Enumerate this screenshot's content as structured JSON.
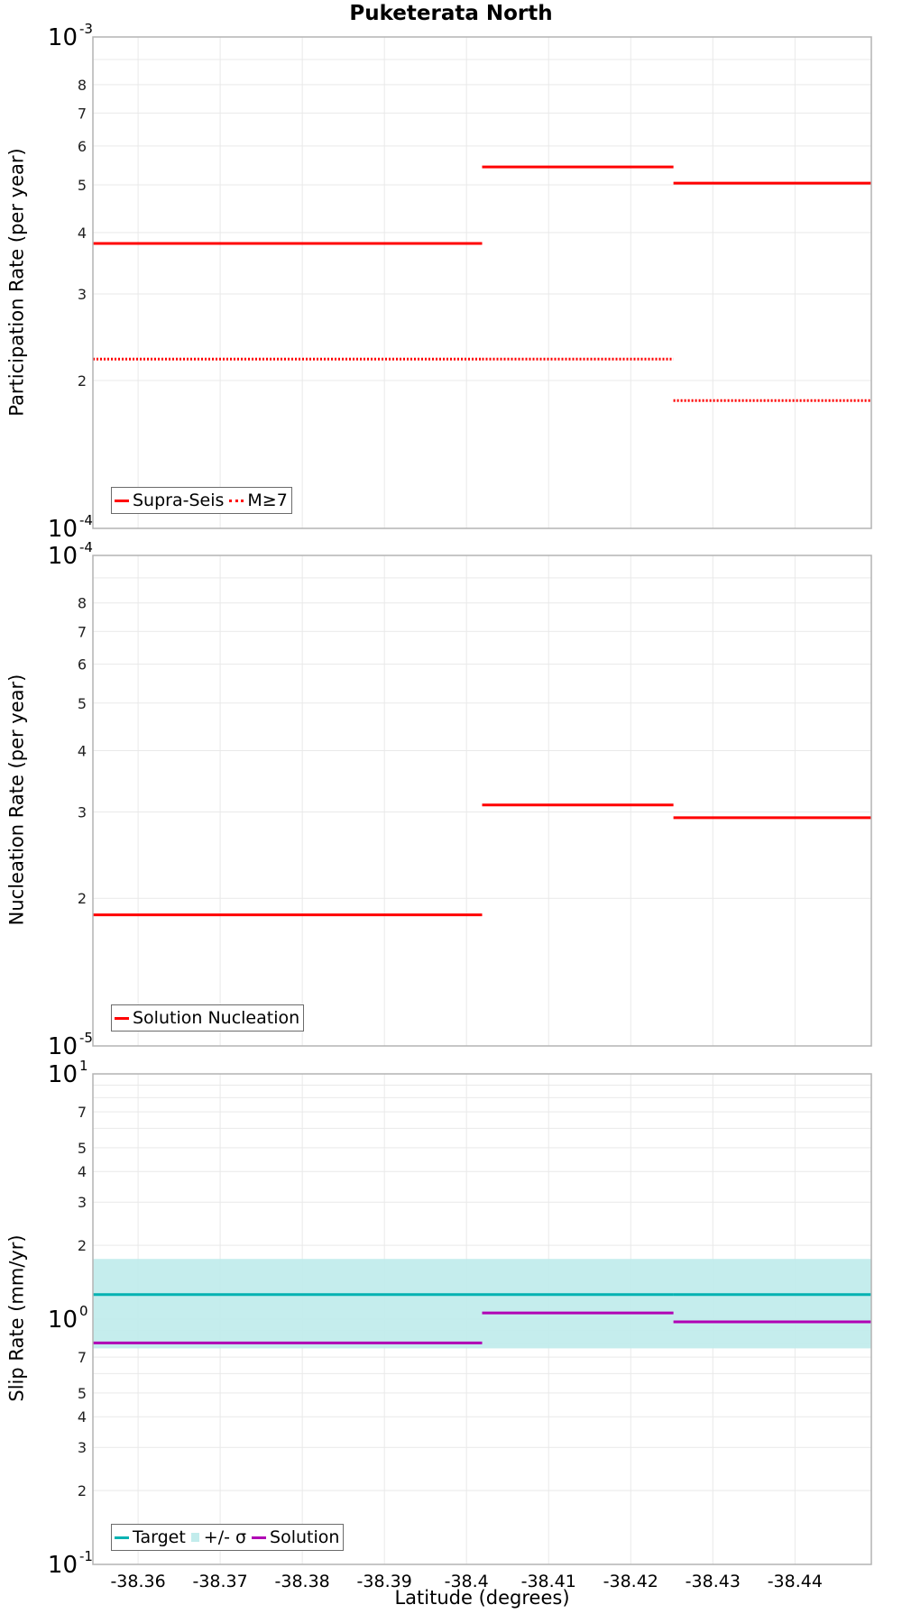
{
  "figure": {
    "title": "Puketerata North",
    "xlabel": "Latitude (degrees)"
  },
  "colors": {
    "supra_seis": "#ff0000",
    "m7": "#ff0000",
    "nucleation": "#ff0000",
    "target": "#00b2b2",
    "sigma_band": "#c2ecec",
    "solution": "#b000b4",
    "grid": "#e9e9e9",
    "frame": "#b4b4b4"
  },
  "chart_data": [
    {
      "type": "line",
      "title": "Puketerata North",
      "xlabel": "Latitude (degrees)",
      "ylabel": "Participation Rate (per year)",
      "yscale": "log",
      "ylim": [
        0.0001,
        0.001
      ],
      "xlim": [
        -38.3545,
        -38.4493
      ],
      "x_ticks": [
        -38.36,
        -38.37,
        -38.38,
        -38.39,
        -38.4,
        -38.41,
        -38.42,
        -38.43,
        -38.44
      ],
      "y_tick_labels": [
        "10^-3",
        "8",
        "7",
        "6",
        "5",
        "4",
        "3",
        "2",
        "10^-4"
      ],
      "grid": true,
      "legend": {
        "position": "lower-left",
        "entries": [
          "Supra-Seis",
          "M≥7"
        ]
      },
      "series": [
        {
          "name": "Supra-Seis",
          "style": "solid",
          "segments": [
            {
              "x": [
                -38.3545,
                -38.4019
              ],
              "y": 0.00038
            },
            {
              "x": [
                -38.4019,
                -38.4252
              ],
              "y": 0.000544
            },
            {
              "x": [
                -38.4252,
                -38.4493
              ],
              "y": 0.000504
            }
          ]
        },
        {
          "name": "M≥7",
          "style": "dotted",
          "segments": [
            {
              "x": [
                -38.3545,
                -38.4019
              ],
              "y": 0.000221
            },
            {
              "x": [
                -38.4019,
                -38.4252
              ],
              "y": 0.000221
            },
            {
              "x": [
                -38.4252,
                -38.4493
              ],
              "y": 0.000182
            }
          ]
        }
      ]
    },
    {
      "type": "line",
      "ylabel": "Nucleation Rate (per year)",
      "yscale": "log",
      "ylim": [
        1e-05,
        0.0001
      ],
      "xlim": [
        -38.3545,
        -38.4493
      ],
      "y_tick_labels": [
        "10^-4",
        "8",
        "7",
        "6",
        "5",
        "4",
        "3",
        "2",
        "10^-5"
      ],
      "grid": true,
      "legend": {
        "position": "lower-left",
        "entries": [
          "Solution Nucleation"
        ]
      },
      "series": [
        {
          "name": "Solution Nucleation",
          "style": "solid",
          "segments": [
            {
              "x": [
                -38.3545,
                -38.4019
              ],
              "y": 1.85e-05
            },
            {
              "x": [
                -38.4019,
                -38.4252
              ],
              "y": 3.1e-05
            },
            {
              "x": [
                -38.4252,
                -38.4493
              ],
              "y": 2.92e-05
            }
          ]
        }
      ]
    },
    {
      "type": "line",
      "ylabel": "Slip Rate (mm/yr)",
      "yscale": "log",
      "ylim": [
        0.1,
        10
      ],
      "xlim": [
        -38.3545,
        -38.4493
      ],
      "y_tick_labels": [
        "10^1",
        "7",
        "5",
        "4",
        "3",
        "2",
        "10^0",
        "7",
        "5",
        "4",
        "3",
        "2",
        "10^-1"
      ],
      "grid": true,
      "legend": {
        "position": "lower-left",
        "entries": [
          "Target",
          "+/- σ",
          "Solution"
        ]
      },
      "series": [
        {
          "name": "+/- σ",
          "style": "band",
          "segments": [
            {
              "x": [
                -38.3545,
                -38.4493
              ],
              "y_low": 0.76,
              "y_high": 1.76
            }
          ]
        },
        {
          "name": "Target",
          "style": "solid",
          "segments": [
            {
              "x": [
                -38.3545,
                -38.4019
              ],
              "y": 1.26
            },
            {
              "x": [
                -38.4019,
                -38.4252
              ],
              "y": 1.26
            },
            {
              "x": [
                -38.4252,
                -38.4493
              ],
              "y": 1.26
            }
          ]
        },
        {
          "name": "Solution",
          "style": "solid",
          "segments": [
            {
              "x": [
                -38.3545,
                -38.4019
              ],
              "y": 0.8
            },
            {
              "x": [
                -38.4019,
                -38.4252
              ],
              "y": 1.06
            },
            {
              "x": [
                -38.4252,
                -38.4493
              ],
              "y": 0.975
            }
          ]
        }
      ]
    }
  ],
  "panels": [
    {
      "ylabel": "Participation Rate (per year)",
      "legend": [
        {
          "label": "Supra-Seis",
          "swatch": "line",
          "color": "#ff0000"
        },
        {
          "label": "M≥7",
          "swatch": "dot",
          "color": "#ff0000"
        }
      ]
    },
    {
      "ylabel": "Nucleation Rate (per year)",
      "legend": [
        {
          "label": "Solution Nucleation",
          "swatch": "line",
          "color": "#ff0000"
        }
      ]
    },
    {
      "ylabel": "Slip Rate (mm/yr)",
      "legend": [
        {
          "label": "Target",
          "swatch": "line",
          "color": "#00b2b2"
        },
        {
          "label": "+/- σ",
          "swatch": "fill",
          "color": "#c2ecec"
        },
        {
          "label": "Solution",
          "swatch": "line",
          "color": "#b000b4"
        }
      ]
    }
  ]
}
